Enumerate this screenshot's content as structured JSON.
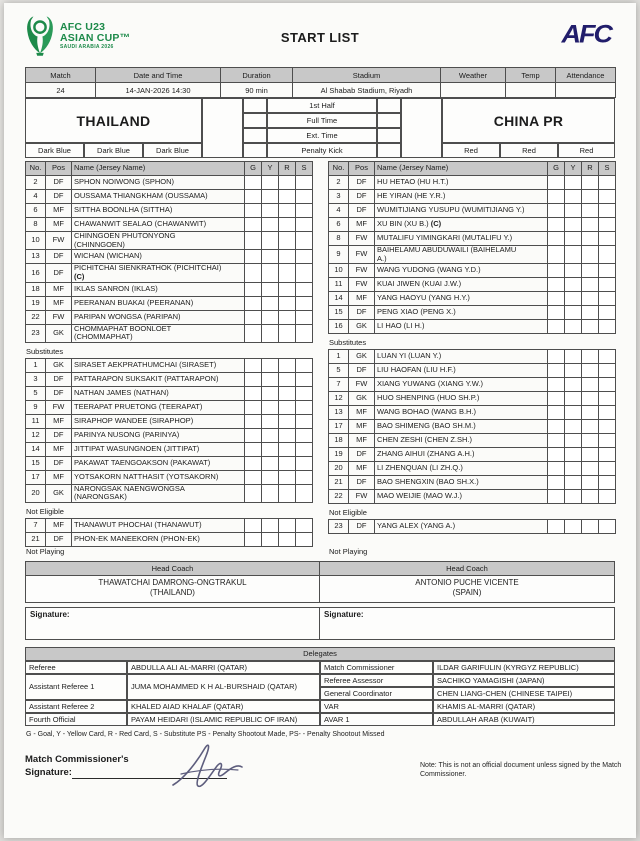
{
  "colors": {
    "header_fill": "#c8c8c8",
    "logo_green": "#1d8a4a",
    "afc_navy": "#211d6b"
  },
  "header": {
    "logo_line1": "AFC U23",
    "logo_line2": "ASIAN CUP™",
    "logo_line3": "SAUDI ARABIA 2026",
    "title": "START LIST",
    "afc": "AFC"
  },
  "match_info": {
    "headers": [
      "Match",
      "Date and Time",
      "Duration",
      "Stadium",
      "Weather",
      "Temp",
      "Attendance"
    ],
    "values": [
      "24",
      "14-JAN-2026 14:30",
      "90 min",
      "Al Shabab Stadium, Riyadh",
      "",
      "",
      ""
    ]
  },
  "score": {
    "labels": [
      "1st Half",
      "Full Time",
      "Ext. Time",
      "Penalty Kick"
    ]
  },
  "roster_headers": {
    "no": "No.",
    "pos": "Pos",
    "name": "Name (Jersey Name)",
    "g": "G",
    "y": "Y",
    "r": "R",
    "s": "S"
  },
  "labels": {
    "substitutes": "Substitutes",
    "not_eligible": "Not Eligible",
    "not_playing": "Not Playing",
    "head_coach": "Head Coach",
    "signature": "Signature:",
    "delegates": "Delegates"
  },
  "teams": [
    {
      "name": "THAILAND",
      "kit": [
        "Dark Blue",
        "Dark Blue",
        "Dark Blue"
      ],
      "coach": {
        "name": "THAWATCHAI DAMRONG-ONGTRAKUL",
        "country": "(THAILAND)"
      },
      "starters": [
        {
          "n": "2",
          "p": "DF",
          "name": "SPHON NOIWONG (SPHON)"
        },
        {
          "n": "4",
          "p": "DF",
          "name": "OUSSAMA THIANGKHAM (OUSSAMA)"
        },
        {
          "n": "6",
          "p": "MF",
          "name": "SITTHA BOONLHA (SITTHA)"
        },
        {
          "n": "8",
          "p": "MF",
          "name": "CHAWANWIT SEALAO (CHAWANWIT)"
        },
        {
          "n": "10",
          "p": "FW",
          "name": "CHINNGOEN PHUTONYONG",
          "name2": "(CHINNGOEN)"
        },
        {
          "n": "13",
          "p": "DF",
          "name": "WICHAN (WICHAN)"
        },
        {
          "n": "16",
          "p": "DF",
          "name": "PICHITCHAI SIENKRATHOK (PICHITCHAI)",
          "name2": "(C)",
          "bold2": true
        },
        {
          "n": "18",
          "p": "MF",
          "name": "IKLAS SANRON (IKLAS)"
        },
        {
          "n": "19",
          "p": "MF",
          "name": "PEERANAN BUAKAI (PEERANAN)"
        },
        {
          "n": "22",
          "p": "FW",
          "name": "PARIPAN WONGSA (PARIPAN)"
        },
        {
          "n": "23",
          "p": "GK",
          "name": "CHOMMAPHAT BOONLOET",
          "name2": "(CHOMMAPHAT)"
        }
      ],
      "substitutes": [
        {
          "n": "1",
          "p": "GK",
          "name": "SIRASET AEKPRATHUMCHAI (SIRASET)"
        },
        {
          "n": "3",
          "p": "DF",
          "name": "PATTARAPON SUKSAKIT (PATTARAPON)"
        },
        {
          "n": "5",
          "p": "DF",
          "name": "NATHAN JAMES (NATHAN)"
        },
        {
          "n": "9",
          "p": "FW",
          "name": "TEERAPAT PRUETONG (TEERAPAT)"
        },
        {
          "n": "11",
          "p": "MF",
          "name": "SIRAPHOP WANDEE (SIRAPHOP)"
        },
        {
          "n": "12",
          "p": "DF",
          "name": "PARINYA NUSONG (PARINYA)"
        },
        {
          "n": "14",
          "p": "MF",
          "name": "JITTIPAT WASUNGNOEN (JITTIPAT)"
        },
        {
          "n": "15",
          "p": "DF",
          "name": "PAKAWAT TAENGOAKSON (PAKAWAT)"
        },
        {
          "n": "17",
          "p": "MF",
          "name": "YOTSAKORN NATTHASIT (YOTSAKORN)"
        },
        {
          "n": "20",
          "p": "GK",
          "name": "NARONGSAK NAENGWONGSA",
          "name2": "(NARONGSAK)"
        }
      ],
      "not_eligible": [
        {
          "n": "7",
          "p": "MF",
          "name": "THANAWUT PHOCHAI (THANAWUT)"
        },
        {
          "n": "21",
          "p": "DF",
          "name": "PHON-EK MANEEKORN (PHON-EK)"
        }
      ]
    },
    {
      "name": "CHINA PR",
      "kit": [
        "Red",
        "Red",
        "Red"
      ],
      "coach": {
        "name": "ANTONIO PUCHE VICENTE",
        "country": "(SPAIN)"
      },
      "starters": [
        {
          "n": "2",
          "p": "DF",
          "name": "HU HETAO (HU H.T.)"
        },
        {
          "n": "3",
          "p": "DF",
          "name": "HE YIRAN (HE Y.R.)"
        },
        {
          "n": "4",
          "p": "DF",
          "name": "WUMITIJIANG YUSUPU (WUMITIJIANG Y.)"
        },
        {
          "n": "6",
          "p": "MF",
          "name": "XU BIN (XU B.)",
          "cap": true
        },
        {
          "n": "8",
          "p": "FW",
          "name": "MUTALIFU YIMINGKARI (MUTALIFU Y.)"
        },
        {
          "n": "9",
          "p": "FW",
          "name": "BAIHELAMU ABUDUWAILI (BAIHELAMU",
          "name2": "A.)"
        },
        {
          "n": "10",
          "p": "FW",
          "name": "WANG YUDONG (WANG Y.D.)"
        },
        {
          "n": "11",
          "p": "FW",
          "name": "KUAI JIWEN (KUAI J.W.)"
        },
        {
          "n": "14",
          "p": "MF",
          "name": "YANG HAOYU (YANG H.Y.)"
        },
        {
          "n": "15",
          "p": "DF",
          "name": "PENG XIAO (PENG X.)"
        },
        {
          "n": "16",
          "p": "GK",
          "name": "LI HAO (LI H.)"
        }
      ],
      "substitutes": [
        {
          "n": "1",
          "p": "GK",
          "name": "LUAN YI (LUAN Y.)"
        },
        {
          "n": "5",
          "p": "DF",
          "name": "LIU HAOFAN (LIU H.F.)"
        },
        {
          "n": "7",
          "p": "FW",
          "name": "XIANG YUWANG (XIANG Y.W.)"
        },
        {
          "n": "12",
          "p": "GK",
          "name": "HUO SHENPING (HUO SH.P.)"
        },
        {
          "n": "13",
          "p": "MF",
          "name": "WANG BOHAO (WANG B.H.)"
        },
        {
          "n": "17",
          "p": "MF",
          "name": "BAO SHIMENG (BAO SH.M.)"
        },
        {
          "n": "18",
          "p": "MF",
          "name": "CHEN ZESHI (CHEN Z.SH.)"
        },
        {
          "n": "19",
          "p": "DF",
          "name": "ZHANG AIHUI (ZHANG A.H.)"
        },
        {
          "n": "20",
          "p": "MF",
          "name": "LI ZHENQUAN (LI ZH.Q.)"
        },
        {
          "n": "21",
          "p": "DF",
          "name": "BAO SHENGXIN (BAO SH.X.)"
        },
        {
          "n": "22",
          "p": "FW",
          "name": "MAO WEIJIE (MAO W.J.)"
        }
      ],
      "not_eligible": [
        {
          "n": "23",
          "p": "DF",
          "name": "YANG ALEX (YANG A.)"
        }
      ]
    }
  ],
  "delegates": {
    "left": [
      {
        "role": "Referee",
        "name": "ABDULLA ALI AL-MARRI (QATAR)"
      },
      {
        "role": "Assistant Referee 1",
        "name": "JUMA MOHAMMED K H AL-BURSHAID (QATAR)"
      },
      {
        "role": "Assistant Referee 2",
        "name": "KHALED AIAD KHALAF (QATAR)"
      },
      {
        "role": "Fourth Official",
        "name": "PAYAM HEIDARI (ISLAMIC REPUBLIC OF IRAN)"
      }
    ],
    "right": [
      {
        "role": "Match Commissioner",
        "name": "ILDAR GARIFULIN (KYRGYZ REPUBLIC)"
      },
      {
        "role": "Referee Assessor",
        "name": "SACHIKO YAMAGISHI (JAPAN)"
      },
      {
        "role": "General Coordinator",
        "name": "CHEN LIANG-CHEN (CHINESE TAIPEI)"
      },
      {
        "role": "VAR",
        "name": "KHAMIS AL-MARRI (QATAR)"
      },
      {
        "role": "AVAR 1",
        "name": "ABDULLAH ARAB (KUWAIT)"
      }
    ]
  },
  "footnote": "G - Goal, Y - Yellow Card, R - Red Card, S - Substitute PS - Penalty Shootout Made, PS- - Penalty Shootout Missed",
  "bottom": {
    "mc_line1": "Match Commissioner's",
    "mc_line2": "Signature:",
    "note": "Note: This is not an official document unless signed by the Match Commissioner."
  }
}
